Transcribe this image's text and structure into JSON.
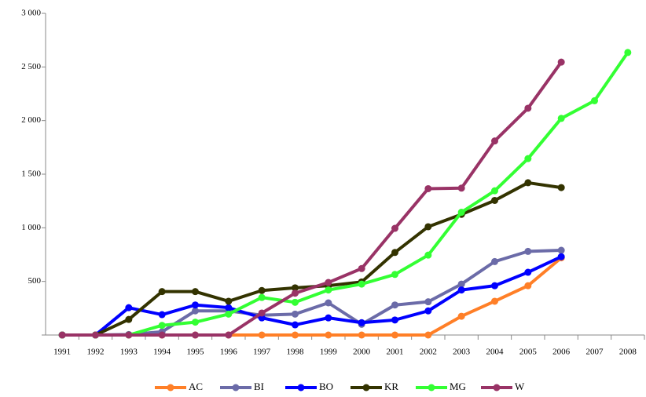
{
  "chart_data": {
    "type": "line",
    "categories": [
      "1991",
      "1992",
      "1993",
      "1994",
      "1995",
      "1996",
      "1997",
      "1998",
      "1999",
      "2000",
      "2001",
      "2002",
      "2003",
      "2004",
      "2005",
      "2006",
      "2007",
      "2008"
    ],
    "series": [
      {
        "name": "AC",
        "color": "#ff7f27",
        "values": [
          0,
          0,
          0,
          0,
          0,
          0,
          0,
          0,
          0,
          0,
          0,
          0,
          175,
          315,
          460,
          720,
          null,
          null
        ]
      },
      {
        "name": "BI",
        "color": "#6b6ba8",
        "values": [
          0,
          0,
          5,
          30,
          225,
          225,
          185,
          195,
          300,
          100,
          280,
          310,
          475,
          685,
          780,
          790,
          null,
          null
        ]
      },
      {
        "name": "BO",
        "color": "#0000ff",
        "values": [
          0,
          0,
          255,
          190,
          280,
          255,
          160,
          95,
          160,
          115,
          140,
          225,
          420,
          460,
          585,
          730,
          null,
          null
        ]
      },
      {
        "name": "KR",
        "color": "#333300",
        "values": [
          0,
          0,
          145,
          405,
          405,
          315,
          415,
          440,
          460,
          495,
          770,
          1010,
          1125,
          1255,
          1420,
          1375,
          null,
          null
        ]
      },
      {
        "name": "MG",
        "color": "#33ff33",
        "values": [
          0,
          0,
          0,
          90,
          120,
          195,
          350,
          305,
          420,
          475,
          565,
          745,
          1145,
          1345,
          1645,
          2020,
          2185,
          2635
        ]
      },
      {
        "name": "W",
        "color": "#993366",
        "values": [
          0,
          0,
          0,
          0,
          0,
          0,
          205,
          390,
          490,
          620,
          995,
          1365,
          1370,
          1810,
          2115,
          2545,
          null,
          null
        ]
      }
    ],
    "ylim": [
      0,
      3000
    ],
    "yticks": [
      {
        "value": 0,
        "label": ""
      },
      500,
      {
        "value": 1000,
        "label": "1 000"
      },
      {
        "value": 1500,
        "label": "1 500"
      },
      {
        "value": 2000,
        "label": "2 000"
      },
      {
        "value": 2500,
        "label": "2 500"
      },
      {
        "value": 3000,
        "label": "3 000"
      }
    ],
    "grid": false,
    "legend": "bottom"
  }
}
